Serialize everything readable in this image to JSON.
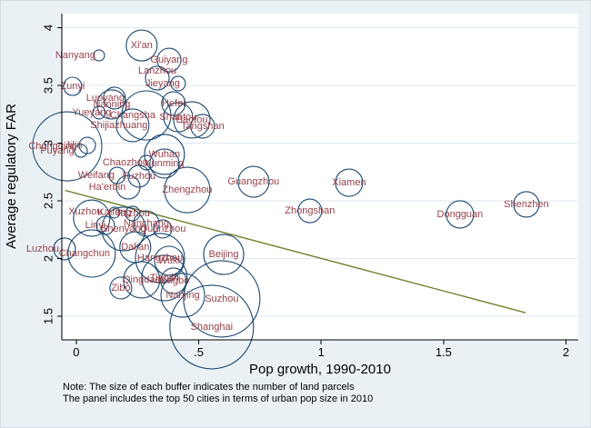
{
  "figure": {
    "note_line1": "Note: The size of each buffer indicates the number of land parcels",
    "note_line2": "The panel includes the top 50 cities in terms of urban pop size in 2010"
  },
  "chart_data": {
    "type": "scatter",
    "subtype": "bubble",
    "title": "",
    "xlabel": "Pop growth, 1990-2010",
    "ylabel": "Average regulatory FAR",
    "xlim": [
      -0.059,
      2.05
    ],
    "ylim": [
      1.295,
      4.122
    ],
    "grid": "horizontal",
    "legend": "none",
    "size_meaning": "number of land parcels",
    "x_ticks": [
      {
        "value": 0,
        "label": "0"
      },
      {
        "value": 0.5,
        "label": ".5"
      },
      {
        "value": 1,
        "label": "1"
      },
      {
        "value": 1.5,
        "label": "1.5"
      },
      {
        "value": 2,
        "label": "2"
      }
    ],
    "y_ticks": [
      {
        "value": 1.5,
        "label": "1.5"
      },
      {
        "value": 2,
        "label": "2"
      },
      {
        "value": 2.5,
        "label": "2.5"
      },
      {
        "value": 3,
        "label": "3"
      },
      {
        "value": 3.5,
        "label": "3.5"
      },
      {
        "value": 4,
        "label": "4"
      }
    ],
    "colors": {
      "bubble_stroke": "#1a476f",
      "city_label": "#96404a",
      "trend_line": "#71832f",
      "figure_background": "#eaf1f5",
      "plot_background": "#ffffff",
      "gridline": "#dde9f1",
      "axis": "#000000"
    },
    "trendline": {
      "x1": -0.045,
      "y1": 2.59,
      "x2": 1.835,
      "y2": 1.53
    },
    "series": [
      {
        "name": "Xi'an",
        "growth": 0.267,
        "far": 3.846,
        "size": 17
      },
      {
        "name": "Nanyang",
        "growth": 0.093,
        "far": 3.76,
        "size": 6,
        "dx": -26
      },
      {
        "name": "Guiyang",
        "growth": 0.379,
        "far": 3.72,
        "size": 13
      },
      {
        "name": "Lanzhou",
        "growth": 0.331,
        "far": 3.563,
        "size": 13,
        "dy": -8
      },
      {
        "name": "Zunyi",
        "growth": -0.015,
        "far": 3.492,
        "size": 10
      },
      {
        "name": "Jieyang",
        "growth": 0.416,
        "far": 3.516,
        "size": 8,
        "dx": -17
      },
      {
        "name": "Luoyang",
        "growth": 0.156,
        "far": 3.39,
        "size": 12,
        "dx": -10
      },
      {
        "name": "Nanning",
        "growth": 0.145,
        "far": 3.335,
        "size": 16
      },
      {
        "name": "Hefei",
        "growth": 0.397,
        "far": 3.343,
        "size": 13
      },
      {
        "name": "Yueyang",
        "growth": 0.093,
        "far": 3.264,
        "size": 7,
        "dx": -8
      },
      {
        "name": "Changsha",
        "growth": 0.286,
        "far": 3.24,
        "size": 27,
        "dx": -15
      },
      {
        "name": "Shantou",
        "growth": 0.416,
        "far": 3.224,
        "size": 16
      },
      {
        "name": "Shijiazhuang",
        "growth": 0.23,
        "far": 3.154,
        "size": 18,
        "dx": -15
      },
      {
        "name": "Baotou",
        "growth": 0.472,
        "far": 3.201,
        "size": 20
      },
      {
        "name": "Tangshan",
        "growth": 0.516,
        "far": 3.146,
        "size": 13
      },
      {
        "name": "Chongqing",
        "growth": -0.037,
        "far": 2.972,
        "size": 38,
        "dx": -16
      },
      {
        "name": "Jilin",
        "growth": 0.045,
        "far": 2.98,
        "size": 9,
        "dx": -15
      },
      {
        "name": "Puyang",
        "growth": 0.019,
        "far": 2.933,
        "size": 7,
        "dx": -26
      },
      {
        "name": "Wuhan",
        "growth": 0.36,
        "far": 2.902,
        "size": 22
      },
      {
        "name": "Chaozhou",
        "growth": 0.286,
        "far": 2.831,
        "size": 8,
        "dx": -23
      },
      {
        "name": "Kunming",
        "growth": 0.36,
        "far": 2.823,
        "size": 16
      },
      {
        "name": "Weifang",
        "growth": 0.167,
        "far": 2.72,
        "size": 9,
        "dx": -23
      },
      {
        "name": "Fuzhou",
        "growth": 0.256,
        "far": 2.713,
        "size": 12
      },
      {
        "name": "Ha'erbin",
        "growth": 0.212,
        "far": 2.618,
        "size": 13,
        "dx": -23
      },
      {
        "name": "Zhengzhou",
        "growth": 0.453,
        "far": 2.594,
        "size": 25
      },
      {
        "name": "Guangzhou",
        "growth": 0.724,
        "far": 2.665,
        "size": 17
      },
      {
        "name": "Xiamen",
        "growth": 1.114,
        "far": 2.657,
        "size": 15
      },
      {
        "name": "Zhongshan",
        "growth": 0.954,
        "far": 2.413,
        "size": 13
      },
      {
        "name": "Dongguan",
        "growth": 1.567,
        "far": 2.382,
        "size": 15
      },
      {
        "name": "Shenzhen",
        "growth": 1.838,
        "far": 2.469,
        "size": 14
      },
      {
        "name": "Xuzhou",
        "growth": 0.063,
        "far": 2.35,
        "size": 20,
        "dx": -7,
        "dy": -7
      },
      {
        "name": "Kaifeng",
        "growth": 0.156,
        "far": 2.398,
        "size": 6
      },
      {
        "name": "Taizhou",
        "growth": 0.23,
        "far": 2.39,
        "size": 8
      },
      {
        "name": "Linyi",
        "growth": 0.119,
        "far": 2.287,
        "size": 10,
        "dx": -11
      },
      {
        "name": "Shenyang",
        "growth": 0.193,
        "far": 2.256,
        "size": 24
      },
      {
        "name": "Nanchang",
        "growth": 0.286,
        "far": 2.303,
        "size": 14
      },
      {
        "name": "Quanzhou",
        "growth": 0.353,
        "far": 2.256,
        "size": 10
      },
      {
        "name": "Luzhou",
        "growth": -0.048,
        "far": 2.083,
        "size": 12,
        "dx": -24
      },
      {
        "name": "Changchun",
        "growth": 0.063,
        "far": 2.043,
        "size": 26,
        "dx": -8
      },
      {
        "name": "Dalian",
        "growth": 0.241,
        "far": 2.098,
        "size": 17
      },
      {
        "name": "Hangzhou",
        "growth": 0.342,
        "far": 2.004,
        "size": 27
      },
      {
        "name": "Wuxi",
        "growth": 0.379,
        "far": 1.98,
        "size": 16
      },
      {
        "name": "Beijing",
        "growth": 0.602,
        "far": 2.035,
        "size": 22
      },
      {
        "name": "Qingdao",
        "growth": 0.267,
        "far": 1.815,
        "size": 20
      },
      {
        "name": "Tianjin",
        "growth": 0.36,
        "far": 1.831,
        "size": 25
      },
      {
        "name": "Ningbo",
        "growth": 0.397,
        "far": 1.807,
        "size": 14
      },
      {
        "name": "Zibo",
        "growth": 0.182,
        "far": 1.744,
        "size": 12
      },
      {
        "name": "Nanjing",
        "growth": 0.435,
        "far": 1.681,
        "size": 24
      },
      {
        "name": "Suzhou",
        "growth": 0.594,
        "far": 1.65,
        "size": 42
      },
      {
        "name": "Shanghai",
        "growth": 0.553,
        "far": 1.406,
        "size": 46
      }
    ]
  }
}
